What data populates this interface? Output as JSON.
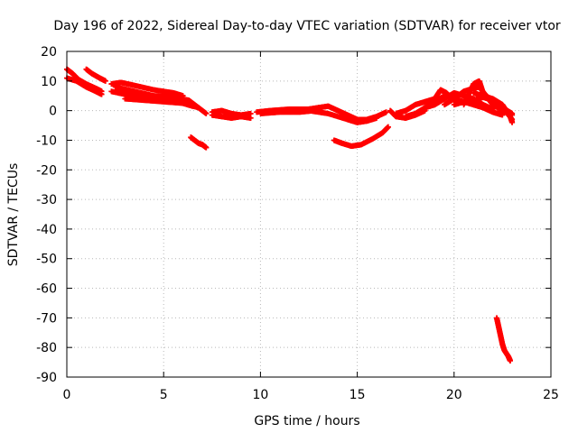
{
  "chart_data": {
    "type": "scatter",
    "title": "Day 196 of 2022, Sidereal Day-to-day VTEC variation (SDTVAR) for receiver vtor",
    "xlabel": "GPS time / hours",
    "ylabel": "SDTVAR / TECUs",
    "xlim": [
      0,
      25
    ],
    "ylim": [
      -90,
      20
    ],
    "xticks": [
      "0",
      "5",
      "10",
      "15",
      "20",
      "25"
    ],
    "yticks": [
      "20",
      "10",
      "0",
      "-10",
      "-20",
      "-30",
      "-40",
      "-50",
      "-60",
      "-70",
      "-80",
      "-90"
    ],
    "grid": true,
    "marker": "+",
    "series": [
      {
        "name": "SDTVAR",
        "color": "#ff0000",
        "segments": [
          [
            [
              0.0,
              14
            ],
            [
              0.3,
              12.5
            ],
            [
              0.6,
              10.5
            ],
            [
              1.0,
              9
            ],
            [
              1.5,
              7.5
            ],
            [
              1.8,
              6.5
            ]
          ],
          [
            [
              0.0,
              11
            ],
            [
              0.5,
              10
            ],
            [
              1.0,
              8
            ],
            [
              1.5,
              6.5
            ],
            [
              1.8,
              5.5
            ]
          ],
          [
            [
              1.0,
              14
            ],
            [
              1.3,
              12.5
            ],
            [
              1.7,
              11
            ],
            [
              2.0,
              10
            ]
          ],
          [
            [
              2.3,
              9
            ],
            [
              2.8,
              9.5
            ],
            [
              3.5,
              8.5
            ],
            [
              4.5,
              7
            ],
            [
              5.5,
              6
            ],
            [
              6.0,
              5
            ]
          ],
          [
            [
              2.3,
              6.5
            ],
            [
              3.0,
              5.5
            ],
            [
              4.0,
              4.5
            ],
            [
              5.0,
              3.5
            ],
            [
              6.0,
              2.5
            ],
            [
              6.5,
              1.5
            ]
          ],
          [
            [
              2.5,
              8
            ],
            [
              3.5,
              6.5
            ],
            [
              4.5,
              5
            ],
            [
              5.5,
              4.5
            ],
            [
              6.3,
              3.5
            ],
            [
              6.8,
              1
            ]
          ],
          [
            [
              3.0,
              4
            ],
            [
              4.0,
              3.5
            ],
            [
              5.0,
              3
            ],
            [
              6.0,
              2.5
            ],
            [
              6.8,
              1
            ],
            [
              7.2,
              -1
            ]
          ],
          [
            [
              6.4,
              -9
            ],
            [
              6.6,
              -10
            ],
            [
              6.8,
              -11
            ],
            [
              7.0,
              -11.5
            ],
            [
              7.2,
              -12.5
            ]
          ],
          [
            [
              7.5,
              -0.5
            ],
            [
              8.0,
              0
            ],
            [
              8.5,
              -1
            ],
            [
              9.0,
              -1.5
            ],
            [
              9.5,
              -1
            ]
          ],
          [
            [
              7.5,
              -1.5
            ],
            [
              8.0,
              -2
            ],
            [
              8.5,
              -2.5
            ],
            [
              9.0,
              -2
            ],
            [
              9.5,
              -2.5
            ]
          ],
          [
            [
              9.8,
              -0.5
            ],
            [
              10.5,
              0
            ],
            [
              11.5,
              0.5
            ],
            [
              12.5,
              0.5
            ],
            [
              13.0,
              1
            ]
          ],
          [
            [
              10.0,
              -1
            ],
            [
              11.0,
              -0.5
            ],
            [
              12.0,
              -0.5
            ],
            [
              12.8,
              0
            ]
          ],
          [
            [
              13.0,
              1
            ],
            [
              13.5,
              1.5
            ],
            [
              14.0,
              0
            ],
            [
              14.5,
              -1.5
            ],
            [
              15.0,
              -3
            ],
            [
              15.5,
              -3
            ],
            [
              16.0,
              -2
            ],
            [
              16.5,
              -0.5
            ]
          ],
          [
            [
              12.5,
              0
            ],
            [
              13.5,
              -1
            ],
            [
              14.5,
              -3
            ],
            [
              15.0,
              -4
            ],
            [
              15.5,
              -3.5
            ],
            [
              16.0,
              -2.5
            ]
          ],
          [
            [
              13.8,
              -10
            ],
            [
              14.2,
              -11
            ],
            [
              14.7,
              -12
            ],
            [
              15.2,
              -11.5
            ],
            [
              15.8,
              -9.5
            ],
            [
              16.3,
              -7.5
            ],
            [
              16.6,
              -5.5
            ]
          ],
          [
            [
              16.7,
              0
            ],
            [
              17.0,
              -2
            ],
            [
              17.5,
              -2.5
            ],
            [
              18.0,
              -1.5
            ],
            [
              18.5,
              0
            ]
          ],
          [
            [
              17.0,
              -1
            ],
            [
              17.5,
              0
            ],
            [
              18.0,
              2
            ],
            [
              18.5,
              3
            ],
            [
              19.0,
              4
            ],
            [
              19.3,
              7
            ],
            [
              19.6,
              6
            ],
            [
              20.0,
              3.5
            ]
          ],
          [
            [
              17.5,
              -2
            ],
            [
              18.0,
              -1
            ],
            [
              18.5,
              1
            ],
            [
              19.0,
              2
            ],
            [
              19.5,
              4
            ],
            [
              20.0,
              6
            ],
            [
              20.5,
              5
            ],
            [
              21.0,
              4
            ],
            [
              21.5,
              2
            ],
            [
              22.0,
              0.5
            ]
          ],
          [
            [
              18.5,
              1
            ],
            [
              19.0,
              3
            ],
            [
              19.5,
              5
            ],
            [
              20.0,
              4
            ],
            [
              20.5,
              3
            ],
            [
              21.0,
              2
            ],
            [
              21.5,
              1
            ],
            [
              22.0,
              -0.5
            ],
            [
              22.5,
              -1.5
            ]
          ],
          [
            [
              19.5,
              2
            ],
            [
              20.0,
              4
            ],
            [
              20.5,
              6.5
            ],
            [
              21.0,
              7.5
            ],
            [
              21.3,
              8
            ],
            [
              21.6,
              5.5
            ],
            [
              22.0,
              3
            ],
            [
              22.5,
              1
            ],
            [
              23.0,
              -1
            ]
          ],
          [
            [
              20.5,
              2
            ],
            [
              21.0,
              9
            ],
            [
              21.3,
              10
            ],
            [
              21.5,
              6
            ],
            [
              22.0,
              2
            ],
            [
              22.5,
              0
            ],
            [
              23.0,
              -1.5
            ]
          ],
          [
            [
              20.0,
              2
            ],
            [
              20.5,
              3
            ],
            [
              21.0,
              3.5
            ],
            [
              21.5,
              4.5
            ],
            [
              22.0,
              3.5
            ],
            [
              22.5,
              1
            ],
            [
              23.0,
              -3
            ]
          ],
          [
            [
              21.0,
              6
            ],
            [
              21.5,
              5
            ],
            [
              22.0,
              4
            ],
            [
              22.5,
              2
            ],
            [
              22.9,
              -2
            ],
            [
              23.0,
              -4
            ]
          ],
          [
            [
              22.2,
              -70
            ],
            [
              22.3,
              -73
            ],
            [
              22.4,
              -76
            ],
            [
              22.5,
              -79
            ],
            [
              22.6,
              -81
            ],
            [
              22.8,
              -83
            ],
            [
              22.9,
              -84.5
            ]
          ]
        ]
      }
    ]
  }
}
